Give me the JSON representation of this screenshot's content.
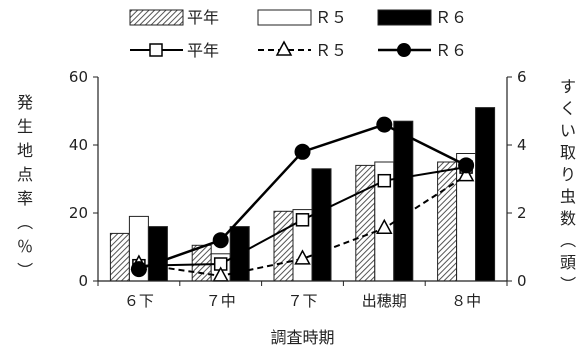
{
  "chart_data": {
    "type": "bar",
    "categories": [
      "６下",
      "７中",
      "７下",
      "出穂期",
      "８中"
    ],
    "bar_axis": {
      "label": "発生地点率（％）",
      "ylim": [
        0,
        60
      ],
      "ticks": [
        "0",
        "20",
        "40",
        "60"
      ]
    },
    "line_axis": {
      "label": "すくい取り虫数（頭）",
      "ylim": [
        0,
        6
      ],
      "ticks": [
        "0",
        "2",
        "4",
        "6"
      ]
    },
    "xlabel": "調査時期",
    "bar_series": [
      {
        "name": "平年",
        "values": [
          14,
          10.5,
          20.5,
          34,
          35
        ],
        "style": "hatched"
      },
      {
        "name": "Ｒ５",
        "values": [
          19,
          8,
          21,
          35,
          37.5
        ],
        "style": "white"
      },
      {
        "name": "Ｒ６",
        "values": [
          16,
          16,
          33,
          47,
          51
        ],
        "style": "black"
      }
    ],
    "line_series": [
      {
        "name": "平年",
        "values": [
          0.45,
          0.5,
          1.8,
          2.95,
          3.35
        ],
        "marker": "square",
        "dash": "solid"
      },
      {
        "name": "Ｒ５",
        "values": [
          0.5,
          0.15,
          0.65,
          1.55,
          3.1
        ],
        "marker": "triangle",
        "dash": "dashed"
      },
      {
        "name": "Ｒ６",
        "values": [
          0.35,
          1.2,
          3.8,
          4.6,
          3.4
        ],
        "marker": "circle",
        "dash": "solid"
      }
    ],
    "legend_position": "top",
    "grid": false
  },
  "colors": {
    "axis": "#222222",
    "bar_black": "#000000",
    "bar_white": "#ffffff"
  }
}
